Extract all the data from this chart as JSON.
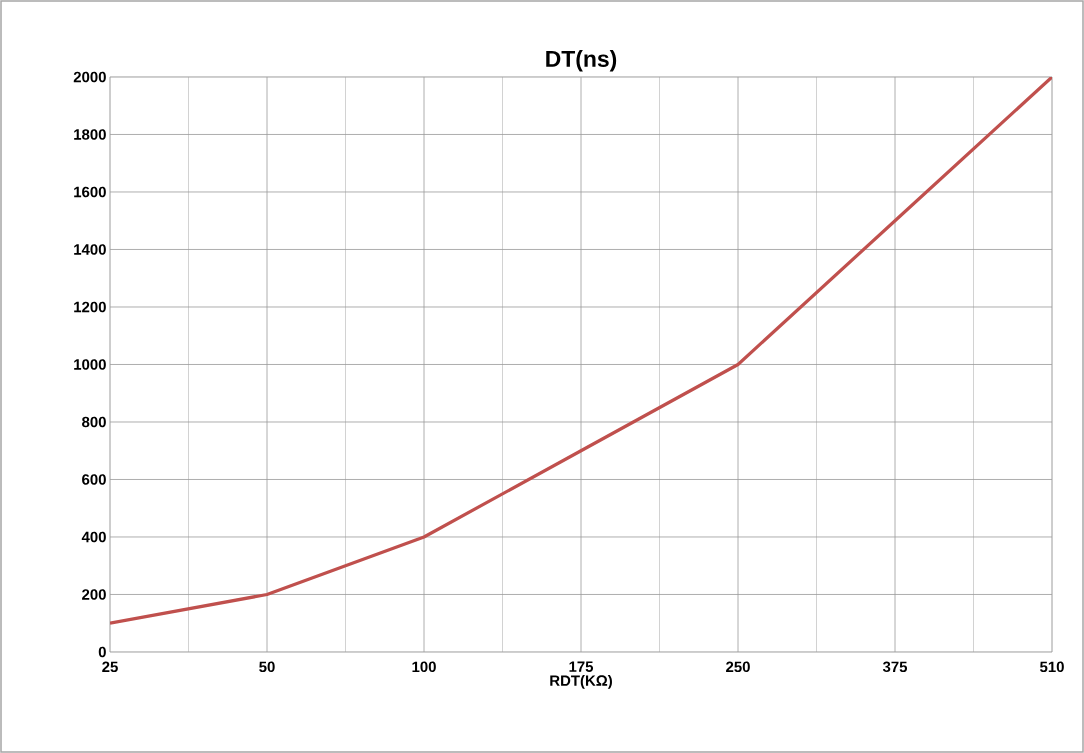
{
  "chart_data": {
    "type": "line",
    "title": "DT(ns)",
    "xlabel": "RDT(KΩ)",
    "categories": [
      "25",
      "50",
      "100",
      "175",
      "250",
      "375",
      "510"
    ],
    "series": [
      {
        "color": "#c0504d",
        "values": [
          100,
          200,
          400,
          700,
          1000,
          1500,
          2000
        ]
      }
    ],
    "ylim": [
      0,
      2000
    ],
    "yticks": [
      0,
      200,
      400,
      600,
      800,
      1000,
      1200,
      1400,
      1600,
      1800,
      2000
    ],
    "grid": true,
    "marker": "none",
    "line_style": "solid"
  }
}
